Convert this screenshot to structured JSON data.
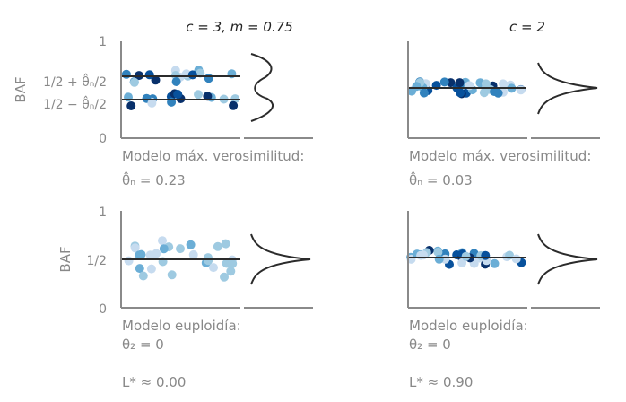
{
  "colors": {
    "axis": "#8a8a8a",
    "text_grey": "#888888",
    "line": "#2b2b2b",
    "dots": [
      "#c6dbef",
      "#9ecae1",
      "#6baed6",
      "#3182bd",
      "#08519c",
      "#08306b"
    ]
  },
  "titles": {
    "left": "c = 3,  m = 0.75",
    "right": "c = 2"
  },
  "y_axis": {
    "label": "BAF",
    "top_tick": "1",
    "bottom_tick": "0",
    "upper_mid_tick": "1/2 + θ̂ₙ/2",
    "lower_mid_tick": "1/2 − θ̂ₙ/2",
    "mid_tick": "1/2"
  },
  "captions": {
    "top_left_title": "Modelo máx. verosimilitud:",
    "top_left_value": "θ̂ₙ = 0.23",
    "top_right_title": "Modelo máx. verosimilitud:",
    "top_right_value": "θ̂ₙ = 0.03",
    "bottom_left_title": "Modelo euploidía:",
    "bottom_left_value": "θ₂ = 0",
    "bottom_left_likelihood": "L* ≈ 0.00",
    "bottom_right_title": "Modelo euploidía:",
    "bottom_right_value": "θ₂ = 0",
    "bottom_right_likelihood": "L* ≈ 0.90"
  },
  "panels": [
    {
      "id": "top-left",
      "model_lines": [
        0.75,
        0.5
      ],
      "theta": 0.23
    },
    {
      "id": "top-right",
      "model_lines": [
        0.515
      ],
      "theta": 0.03
    },
    {
      "id": "bottom-left",
      "model_lines": [
        0.5
      ],
      "theta": 0
    },
    {
      "id": "bottom-right",
      "model_lines": [
        0.5
      ],
      "theta": 0
    }
  ]
}
